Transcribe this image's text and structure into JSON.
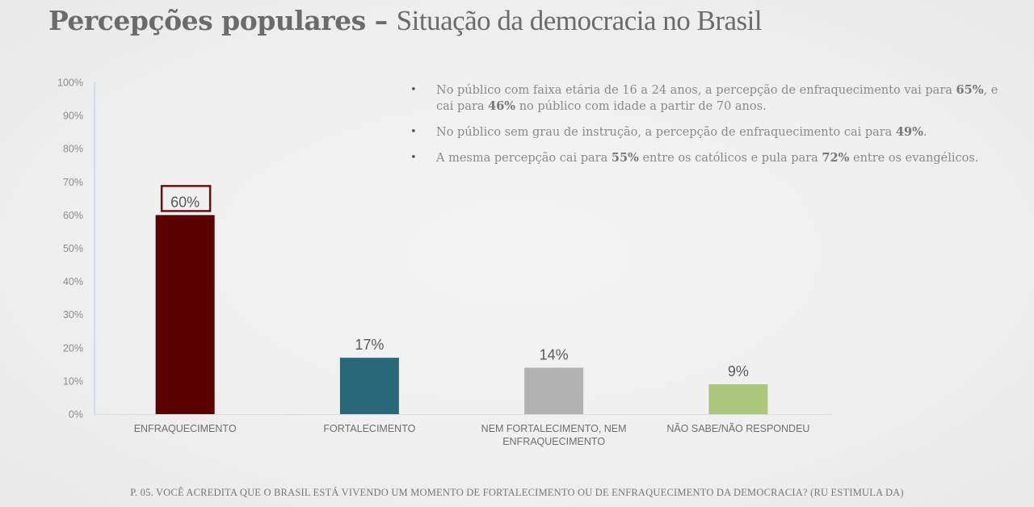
{
  "title": {
    "bold": "Percepções populares",
    "separator": " – ",
    "light": "Situação da democracia no Brasil"
  },
  "notes": [
    {
      "bullet": "•",
      "parts": [
        {
          "t": "No público com faixa etária de 16 a 24 anos, a percepção de enfraquecimento vai para ",
          "b": false
        },
        {
          "t": "65%",
          "b": true
        },
        {
          "t": ", e cai para ",
          "b": false
        },
        {
          "t": "46%",
          "b": true
        },
        {
          "t": " no público com idade a partir de 70 anos.",
          "b": false
        }
      ]
    },
    {
      "bullet": "•",
      "parts": [
        {
          "t": "No público sem grau de instrução, a percepção de enfraquecimento cai para ",
          "b": false
        },
        {
          "t": "49%",
          "b": true
        },
        {
          "t": ".",
          "b": false
        }
      ]
    },
    {
      "bullet": "•",
      "parts": [
        {
          "t": "A mesma percepção cai para ",
          "b": false
        },
        {
          "t": "55%",
          "b": true
        },
        {
          "t": " entre os católicos e pula para ",
          "b": false
        },
        {
          "t": "72%",
          "b": true
        },
        {
          "t": " entre os evangélicos.",
          "b": false
        }
      ]
    }
  ],
  "chart_data": {
    "type": "bar",
    "title": "",
    "xlabel": "",
    "ylabel": "",
    "categories": [
      [
        "ENFRAQUECIMENTO"
      ],
      [
        "FORTALECIMENTO"
      ],
      [
        "NEM FORTALECIMENTO, NEM",
        "ENFRAQUECIMENTO"
      ],
      [
        "NÃO SABE/NÃO RESPONDEU"
      ]
    ],
    "values": [
      60,
      17,
      14,
      9
    ],
    "value_labels": [
      "60%",
      "17%",
      "14%",
      "9%"
    ],
    "colors": [
      "#5a0000",
      "#266a7a",
      "#b3b3b3",
      "#abc878"
    ],
    "highlight_index": 0,
    "highlight_color": "#6b0e0e",
    "ylim": [
      0,
      100
    ],
    "yticks": [
      0,
      10,
      20,
      30,
      40,
      50,
      60,
      70,
      80,
      90,
      100
    ],
    "ytick_labels": [
      "0%",
      "10%",
      "20%",
      "30%",
      "40%",
      "50%",
      "60%",
      "70%",
      "80%",
      "90%",
      "100%"
    ],
    "grid": false,
    "legend": "none"
  },
  "footer": "P. 05. VOCÊ ACREDITA QUE O BRASIL ESTÁ VIVENDO UM MOMENTO DE FORTALECIMENTO OU DE ENFRAQUECIMENTO DA DEMOCRACIA? (RU ESTIMULA DA)"
}
